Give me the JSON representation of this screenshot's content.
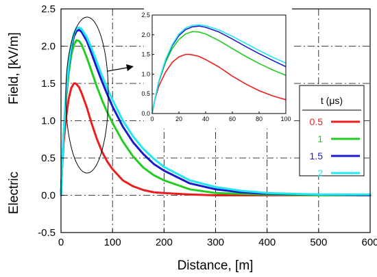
{
  "chart_data": {
    "type": "line",
    "xlabel": "Distance, [m]",
    "ylabel_parts": [
      "Electric",
      "Field, [kV/m]"
    ],
    "xlim": [
      0,
      600
    ],
    "ylim": [
      -0.5,
      2.5
    ],
    "xticks": [
      0,
      100,
      200,
      300,
      400,
      500,
      600
    ],
    "yticks": [
      -0.5,
      0.0,
      0.5,
      1.0,
      1.5,
      2.0,
      2.5
    ],
    "ytick_labels": [
      "-0.5",
      "0.0",
      "0.5",
      "1.0",
      "1.5",
      "2.0",
      "2.5"
    ],
    "grid": true,
    "legend": {
      "title": "t (μs)",
      "position": "right",
      "entries": [
        {
          "label": "0.5",
          "color": "#ee1c1c"
        },
        {
          "label": "1",
          "color": "#22cc22"
        },
        {
          "label": "1.5",
          "color": "#1a1acc"
        },
        {
          "label": "2",
          "color": "#22e6f0"
        }
      ]
    },
    "series": [
      {
        "name": "0.5",
        "color": "#ee1c1c",
        "x": [
          0,
          2,
          5,
          10,
          15,
          20,
          25,
          28,
          30,
          35,
          40,
          50,
          60,
          70,
          80,
          90,
          100,
          120,
          140,
          160,
          180,
          200,
          250,
          300,
          400,
          500,
          600
        ],
        "y": [
          0,
          0.35,
          0.7,
          1.05,
          1.3,
          1.44,
          1.5,
          1.5,
          1.49,
          1.45,
          1.37,
          1.18,
          0.95,
          0.75,
          0.58,
          0.45,
          0.35,
          0.2,
          0.12,
          0.07,
          0.04,
          0.03,
          0.01,
          0.0,
          0.0,
          0.0,
          0.0
        ]
      },
      {
        "name": "1",
        "color": "#22cc22",
        "x": [
          0,
          2,
          5,
          10,
          15,
          20,
          25,
          30,
          35,
          40,
          50,
          60,
          70,
          80,
          90,
          100,
          120,
          140,
          160,
          180,
          200,
          250,
          300,
          400,
          500,
          600
        ],
        "y": [
          0,
          0.35,
          0.8,
          1.3,
          1.65,
          1.88,
          2.02,
          2.08,
          2.07,
          2.02,
          1.85,
          1.65,
          1.45,
          1.27,
          1.11,
          0.97,
          0.72,
          0.52,
          0.37,
          0.27,
          0.2,
          0.08,
          0.03,
          0.01,
          0.0,
          0.0
        ]
      },
      {
        "name": "1.5",
        "color": "#1a1acc",
        "x": [
          0,
          2,
          5,
          10,
          15,
          20,
          25,
          30,
          35,
          40,
          50,
          60,
          70,
          80,
          90,
          100,
          120,
          140,
          160,
          180,
          200,
          250,
          300,
          350,
          400,
          500,
          600
        ],
        "y": [
          0,
          0.35,
          0.82,
          1.35,
          1.72,
          1.98,
          2.13,
          2.2,
          2.22,
          2.19,
          2.07,
          1.89,
          1.7,
          1.52,
          1.35,
          1.19,
          0.92,
          0.71,
          0.55,
          0.42,
          0.33,
          0.16,
          0.08,
          0.04,
          0.02,
          0.01,
          0.0
        ]
      },
      {
        "name": "2",
        "color": "#22e6f0",
        "x": [
          0,
          2,
          5,
          10,
          15,
          20,
          25,
          30,
          35,
          40,
          50,
          60,
          70,
          80,
          90,
          100,
          120,
          140,
          160,
          180,
          200,
          250,
          300,
          350,
          400,
          500,
          600
        ],
        "y": [
          0,
          0.35,
          0.83,
          1.37,
          1.75,
          2.02,
          2.17,
          2.24,
          2.25,
          2.23,
          2.12,
          1.96,
          1.78,
          1.6,
          1.43,
          1.28,
          1.0,
          0.79,
          0.62,
          0.49,
          0.38,
          0.2,
          0.11,
          0.06,
          0.03,
          0.01,
          0.01
        ]
      }
    ],
    "inset": {
      "xlim": [
        0,
        100
      ],
      "ylim": [
        0,
        2.5
      ],
      "xticks": [
        0,
        20,
        40,
        60,
        80,
        100
      ],
      "yticks": [
        0,
        0.5,
        1.0,
        1.5,
        2.0,
        2.5
      ],
      "ytick_labels": [
        "0.0",
        "0.5",
        "1.0",
        "1.5",
        "2.0",
        "2.5"
      ],
      "grid": false
    }
  }
}
